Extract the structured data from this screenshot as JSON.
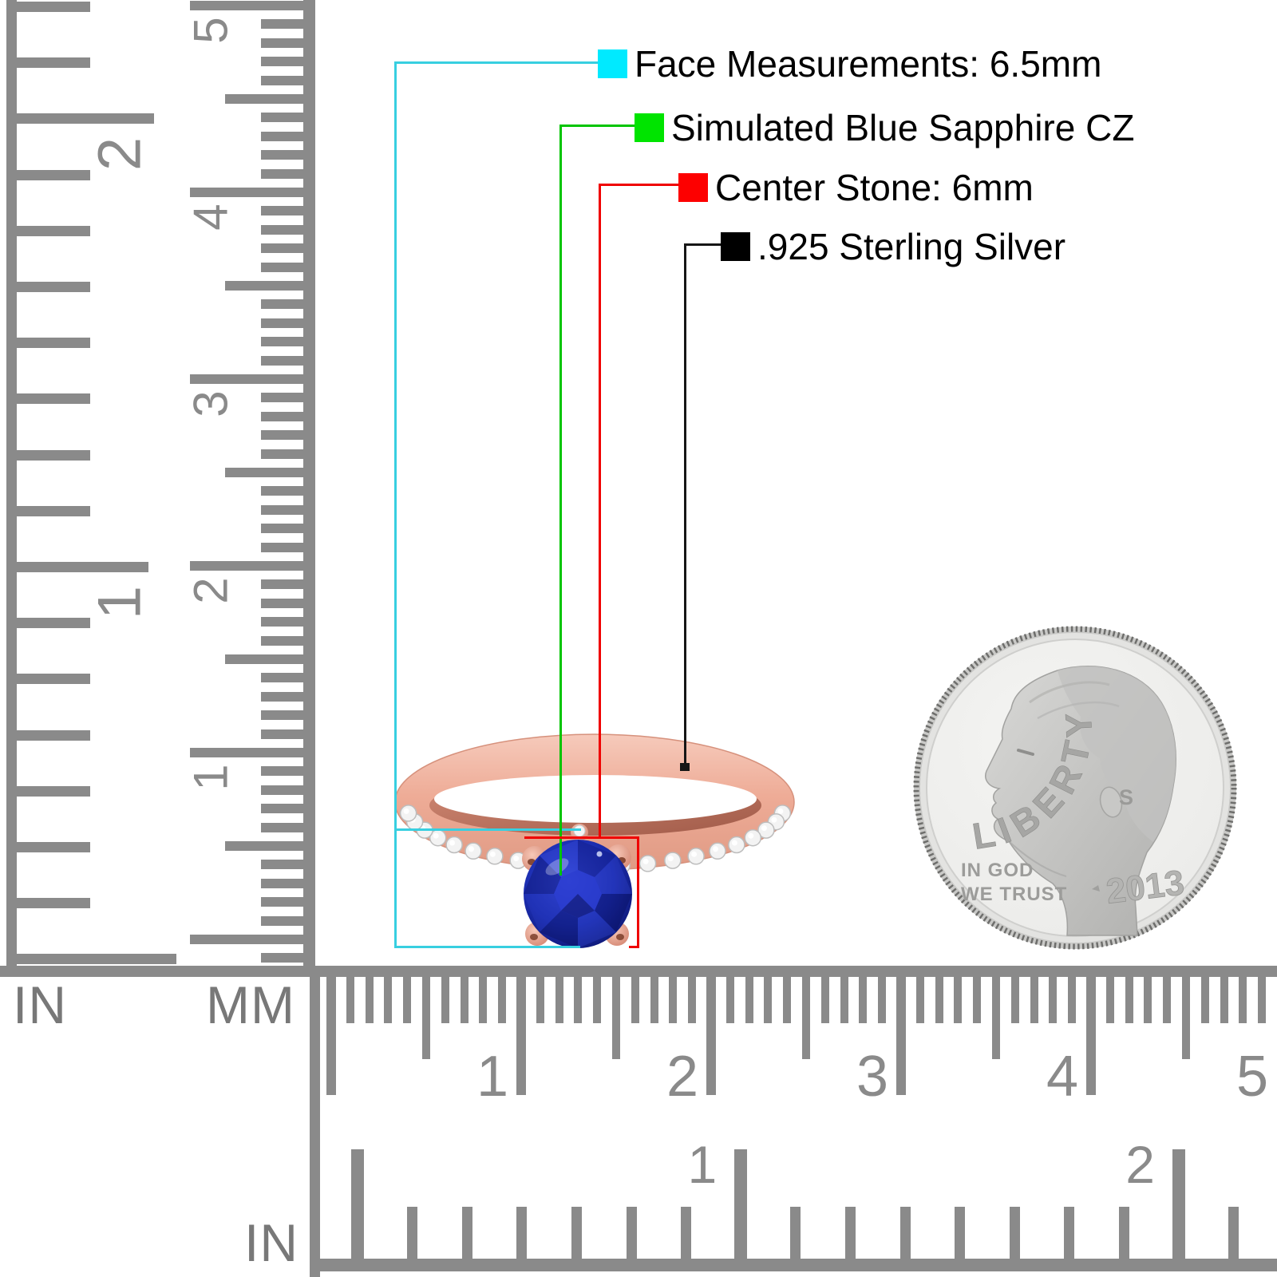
{
  "page": {
    "background": "#ffffff"
  },
  "annotations": {
    "items": [
      {
        "id": "face",
        "label": "Face Measurements: 6.5mm",
        "swatch_color": "#00eaff",
        "line_color": "#38cfe0"
      },
      {
        "id": "stone_type",
        "label": "Simulated Blue Sapphire CZ",
        "swatch_color": "#00e400",
        "line_color": "#00c400"
      },
      {
        "id": "center_stone",
        "label": "Center Stone: 6mm",
        "swatch_color": "#fd0000",
        "line_color": "#ef0000"
      },
      {
        "id": "metal",
        "label": ".925 Sterling Silver",
        "swatch_color": "#000000",
        "line_color": "#161616"
      }
    ]
  },
  "rulers": {
    "left_inch": {
      "unit_label": "IN",
      "numbers": [
        "2",
        "1"
      ]
    },
    "left_mm": {
      "unit_label": "MM",
      "numbers": [
        "5",
        "4",
        "3",
        "2",
        "1"
      ]
    },
    "bottom_mm": {
      "numbers": [
        "1",
        "2",
        "3",
        "4",
        "5"
      ]
    },
    "bottom_inch": {
      "unit_label": "IN",
      "numbers": [
        "1",
        "2"
      ]
    }
  },
  "coin": {
    "legend": "LIBERTY",
    "motto_line1": "IN GOD",
    "motto_line2": "WE TRUST",
    "mint_mark": "S",
    "year": "2013"
  },
  "ring": {
    "metal_color": "#eeac97",
    "stone_color": "#1b2db0",
    "accent_stone_color": "#f3f3f3"
  }
}
